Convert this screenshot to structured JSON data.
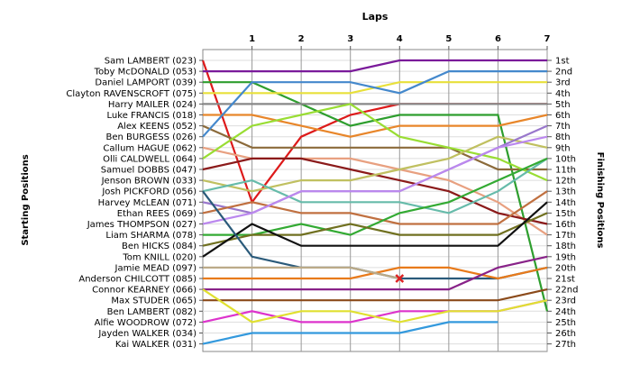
{
  "chart_data": {
    "type": "line",
    "title": "Laps",
    "ylabel_left": "Starting Positions",
    "ylabel_right": "Finishing Positions",
    "laps": [
      0,
      1,
      2,
      3,
      4,
      5,
      6,
      7
    ],
    "lap_tick_labels": [
      "1",
      "2",
      "3",
      "4",
      "5",
      "6",
      "7"
    ],
    "finishing_labels": [
      "1st",
      "2nd",
      "3rd",
      "4th",
      "5th",
      "6th",
      "7th",
      "8th",
      "9th",
      "10th",
      "11th",
      "12th",
      "13th",
      "14th",
      "15th",
      "16th",
      "17th",
      "18th",
      "19th",
      "20th",
      "21st",
      "22nd",
      "23rd",
      "24th",
      "25th",
      "26th",
      "27th"
    ],
    "grid": true,
    "series": [
      {
        "name": "Sam LAMBERT (023)",
        "color": "#dd1a1a",
        "positions": [
          1,
          14,
          8,
          6,
          5,
          5,
          5,
          5
        ]
      },
      {
        "name": "Toby McDONALD (053)",
        "color": "#7a1a9a",
        "positions": [
          2,
          2,
          2,
          2,
          1,
          1,
          1,
          1
        ]
      },
      {
        "name": "Daniel LAMPORT (039)",
        "color": "#2e9e2e",
        "positions": [
          3,
          3,
          5,
          7,
          6,
          6,
          6,
          24
        ]
      },
      {
        "name": "Clayton RAVENSCROFT (075)",
        "color": "#e8e03a",
        "positions": [
          4,
          4,
          4,
          4,
          3,
          3,
          3,
          3
        ]
      },
      {
        "name": "Harry MAILER (024)",
        "color": "#888888",
        "positions": [
          5,
          5,
          5,
          5,
          5,
          5,
          5,
          5
        ]
      },
      {
        "name": "Luke FRANCIS (018)",
        "color": "#e8862a",
        "positions": [
          6,
          6,
          7,
          8,
          7,
          7,
          7,
          6
        ]
      },
      {
        "name": "Alex KEENS (052)",
        "color": "#8b6a3a",
        "positions": [
          7,
          9,
          9,
          9,
          9,
          9,
          11,
          11
        ]
      },
      {
        "name": "Ben BURGESS (026)",
        "color": "#4488cc",
        "positions": [
          8,
          3,
          3,
          3,
          4,
          2,
          2,
          2
        ]
      },
      {
        "name": "Callum HAGUE (062)",
        "color": "#e8a080",
        "positions": [
          9,
          10,
          10,
          10,
          11,
          12,
          14,
          17
        ]
      },
      {
        "name": "Olli CALDWELL (064)",
        "color": "#99dd33",
        "positions": [
          10,
          7,
          6,
          5,
          8,
          9,
          10,
          12
        ]
      },
      {
        "name": "Samuel DOBBS (047)",
        "color": "#8b1a1a",
        "positions": [
          11,
          10,
          10,
          11,
          12,
          13,
          15,
          16
        ]
      },
      {
        "name": "Jenson BROWN (033)",
        "color": "#c0c060",
        "positions": [
          12,
          13,
          12,
          12,
          11,
          10,
          8,
          9
        ]
      },
      {
        "name": "Josh PICKFORD (056)",
        "color": "#66bbaa",
        "positions": [
          13,
          12,
          14,
          14,
          14,
          15,
          13,
          10
        ]
      },
      {
        "name": "Harvey McLEAN (071)",
        "color": "#9977cc",
        "positions": [
          14,
          15,
          13,
          13,
          13,
          11,
          9,
          7
        ]
      },
      {
        "name": "Ethan REES (069)",
        "color": "#c07040",
        "positions": [
          15,
          14,
          15,
          15,
          16,
          16,
          16,
          13
        ]
      },
      {
        "name": "James THOMPSON (027)",
        "color": "#bb88ee",
        "positions": [
          16,
          15,
          13,
          13,
          13,
          11,
          9,
          8
        ]
      },
      {
        "name": "Liam SHARMA (078)",
        "color": "#33aa33",
        "positions": [
          17,
          17,
          16,
          17,
          15,
          14,
          12,
          10
        ]
      },
      {
        "name": "Ben HICKS (084)",
        "color": "#707020",
        "positions": [
          18,
          17,
          17,
          16,
          17,
          17,
          17,
          15
        ]
      },
      {
        "name": "Tom KNILL (020)",
        "color": "#111111",
        "positions": [
          19,
          16,
          18,
          18,
          18,
          18,
          18,
          14
        ]
      },
      {
        "name": "Jamie MEAD (097)",
        "color": "#2a5a7a",
        "positions": [
          13,
          19,
          20,
          20,
          21,
          21,
          21,
          20
        ]
      },
      {
        "name": "Anderson CHILCOTT (085)",
        "color": "#e87a1a",
        "positions": [
          21,
          21,
          21,
          21,
          20,
          20,
          21,
          20
        ]
      },
      {
        "name": "Connor KEARNEY (066)",
        "color": "#882288",
        "positions": [
          22,
          22,
          22,
          22,
          22,
          22,
          20,
          19
        ]
      },
      {
        "name": "Max STUDER (065)",
        "color": "#8b4a1a",
        "positions": [
          23,
          23,
          23,
          23,
          23,
          23,
          23,
          22
        ]
      },
      {
        "name": "Ben LAMBERT (082)",
        "color": "#dd33cc",
        "positions": [
          25,
          24,
          25,
          25,
          24,
          24,
          24,
          23
        ]
      },
      {
        "name": "Alfie WOODROW (072)",
        "color": "#e0e030",
        "positions": [
          22,
          25,
          24,
          24,
          25,
          24,
          24,
          23
        ]
      },
      {
        "name": "Jayden WALKER (034)",
        "color": "#3399dd",
        "positions": [
          27,
          26,
          26,
          26,
          26,
          25,
          25,
          null
        ]
      },
      {
        "name": "Kai WALKER (031)",
        "color": "#bbaa88",
        "positions": [
          20,
          20,
          20,
          20,
          21,
          null,
          null,
          null
        ]
      }
    ],
    "retired_marker": {
      "series": "Kai WALKER (031)",
      "lap": 4,
      "position": 21,
      "symbol": "x",
      "color": "#dd2222"
    }
  }
}
